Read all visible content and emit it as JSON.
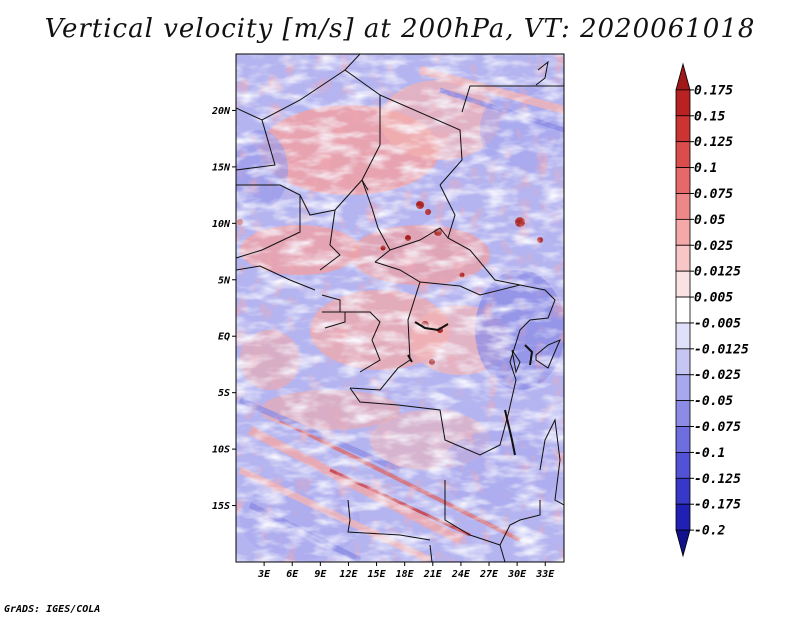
{
  "title": "Vertical velocity [m/s] at 200hPa, VT: 2020061018",
  "credit": "GrADS: IGES/COLA",
  "map": {
    "lon_range": [
      0,
      35
    ],
    "lat_range": [
      -20,
      25
    ],
    "lat_ticks": [
      "20N",
      "15N",
      "10N",
      "5N",
      "EQ",
      "5S",
      "10S",
      "15S"
    ],
    "lat_tick_values": [
      20,
      15,
      10,
      5,
      0,
      -5,
      -10,
      -15
    ],
    "lon_ticks": [
      "3E",
      "6E",
      "9E",
      "12E",
      "15E",
      "18E",
      "21E",
      "24E",
      "27E",
      "30E",
      "33E"
    ],
    "lon_tick_values": [
      3,
      6,
      9,
      12,
      15,
      18,
      21,
      24,
      27,
      30,
      33
    ]
  },
  "colorbar": {
    "labels": [
      "0.175",
      "0.15",
      "0.125",
      "0.1",
      "0.075",
      "0.05",
      "0.025",
      "0.0125",
      "0.005",
      "-0.005",
      "-0.0125",
      "-0.025",
      "-0.05",
      "-0.075",
      "-0.1",
      "-0.125",
      "-0.175",
      "-0.2"
    ],
    "colors": [
      "#a01818",
      "#b82222",
      "#cc3434",
      "#db4c4c",
      "#e66868",
      "#ee8888",
      "#f4a8a8",
      "#f8c6c6",
      "#fbe2e2",
      "#ffffff",
      "#e0e0fa",
      "#c6c6f4",
      "#a8a8ee",
      "#8c8ce6",
      "#6e6ee0",
      "#5252d6",
      "#3838c8",
      "#2020b4",
      "#12128c"
    ]
  }
}
